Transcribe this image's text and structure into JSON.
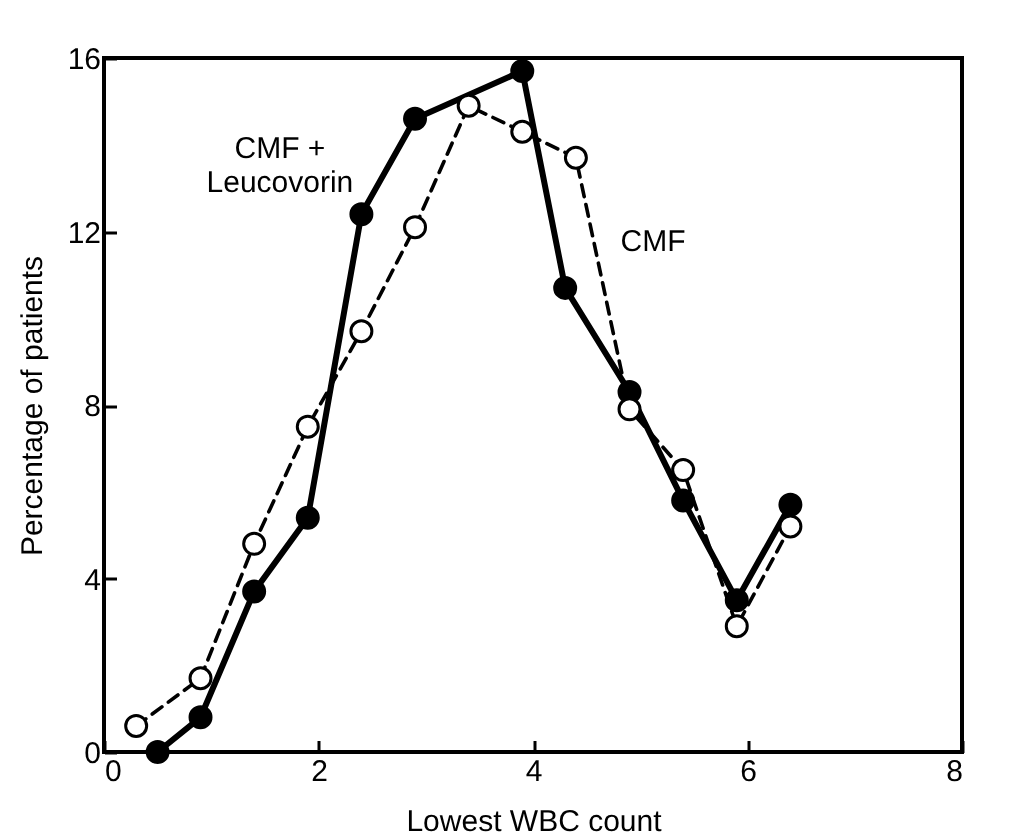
{
  "chart_data": {
    "type": "line",
    "xlabel": "Lowest WBC count",
    "ylabel": "Percentage of patients",
    "series": [
      {
        "color": "#000000",
        "line_style": "solid",
        "x": [
          0.5,
          0.9,
          1.4,
          1.9,
          2.4,
          2.9,
          3.9,
          4.3,
          4.9,
          5.4,
          5.9,
          6.4
        ],
        "values": [
          0.0,
          0.8,
          3.7,
          5.4,
          12.4,
          14.6,
          15.7,
          10.7,
          8.3,
          5.8,
          3.5,
          5.7
        ]
      },
      {
        "color": "#000000",
        "line_style": "dashed",
        "x": [
          0.3,
          0.9,
          1.4,
          1.9,
          2.4,
          2.9,
          3.4,
          3.9,
          4.4,
          4.9,
          5.4,
          5.9,
          6.4
        ],
        "values": [
          0.6,
          1.7,
          4.8,
          7.5,
          9.7,
          12.1,
          14.9,
          14.3,
          13.7,
          7.9,
          6.5,
          2.9,
          5.2
        ]
      }
    ],
    "xlim": [
      0,
      8
    ],
    "xticks": [
      0,
      2,
      4,
      6,
      8
    ],
    "ylim": [
      0,
      16
    ],
    "yticks": [
      0,
      4,
      8,
      12,
      16
    ],
    "marker": "circle",
    "grid": false,
    "annotations": [
      "CMF +\nLeucovorin",
      "CMF"
    ]
  }
}
